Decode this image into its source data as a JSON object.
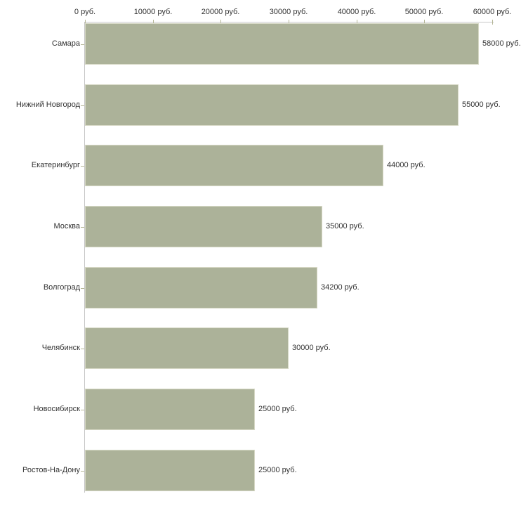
{
  "chart_data": {
    "type": "bar",
    "orientation": "horizontal",
    "title": "",
    "xlabel": "",
    "ylabel": "",
    "unit": "руб.",
    "categories": [
      "Самара",
      "Нижний Новгород",
      "Екатеринбург",
      "Москва",
      "Волгоград",
      "Челябинск",
      "Новосибирск",
      "Ростов-На-Дону"
    ],
    "values": [
      58000,
      55000,
      44000,
      35000,
      34200,
      30000,
      25000,
      25000
    ],
    "value_labels": [
      "58000 руб.",
      "55000 руб.",
      "44000 руб.",
      "35000 руб.",
      "34200 руб.",
      "30000 руб.",
      "25000 руб.",
      "25000 руб."
    ],
    "xlim": [
      0,
      60000
    ],
    "x_ticks": [
      0,
      10000,
      20000,
      30000,
      40000,
      50000,
      60000
    ],
    "x_tick_labels": [
      "0 руб.",
      "10000 руб.",
      "20000 руб.",
      "30000 руб.",
      "40000 руб.",
      "50000 руб.",
      "60000 руб."
    ],
    "grid": false,
    "legend": false,
    "colors": {
      "bar_fill": "#acb299",
      "bar_border": "#d6d8c5",
      "axis_line": "#c6c6c6",
      "tick_mark": "#b5b697",
      "text": "#333333",
      "background": "#ffffff"
    }
  }
}
